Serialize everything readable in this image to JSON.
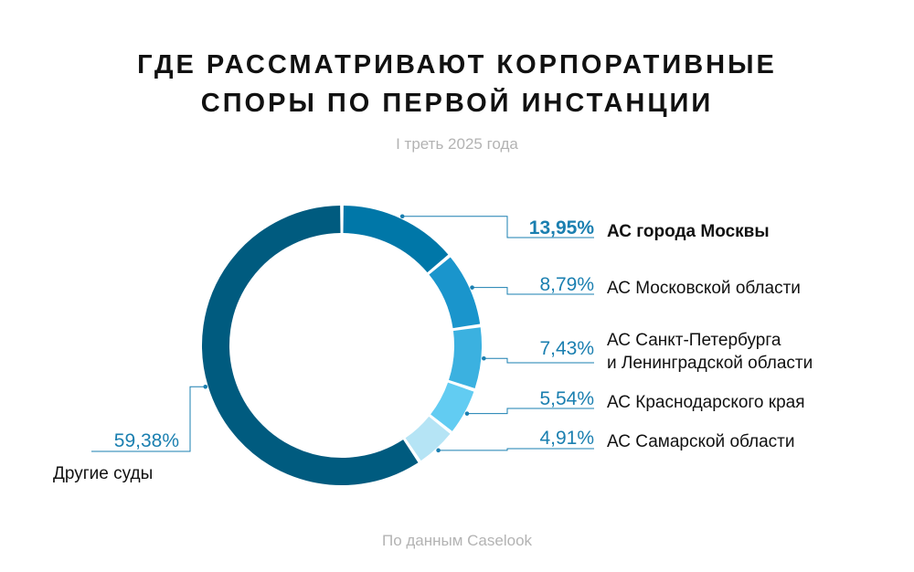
{
  "header": {
    "title_line1": "ГДЕ РАССМАТРИВАЮТ КОРПОРАТИВНЫЕ",
    "title_line2": "СПОРЫ ПО ПЕРВОЙ ИНСТАНЦИИ",
    "subtitle": "I треть 2025 года"
  },
  "footer": {
    "source": "По данным Caselook"
  },
  "chart_data": {
    "type": "pie",
    "variant": "donut",
    "title": "ГДЕ РАССМАТРИВАЮТ КОРПОРАТИВНЫЕ СПОРЫ ПО ПЕРВОЙ ИНСТАНЦИИ",
    "subtitle": "I треть 2025 года",
    "slices": [
      {
        "label": "АС города Москвы",
        "label_lines": [
          "АС города Москвы"
        ],
        "value": 13.95,
        "value_label": "13,95%",
        "color": "#0077a8",
        "emphasis": true
      },
      {
        "label": "АС Московской области",
        "label_lines": [
          "АС Московской области"
        ],
        "value": 8.79,
        "value_label": "8,79%",
        "color": "#1a95cc"
      },
      {
        "label": "АС Санкт-Петербурга и Ленинградской области",
        "label_lines": [
          "АС Санкт-Петербурга",
          "и Ленинградской области"
        ],
        "value": 7.43,
        "value_label": "7,43%",
        "color": "#3bb1e0"
      },
      {
        "label": "АС Краснодарского края",
        "label_lines": [
          "АС Краснодарского края"
        ],
        "value": 5.54,
        "value_label": "5,54%",
        "color": "#62ccf2"
      },
      {
        "label": "АС Самарской области",
        "label_lines": [
          "АС Самарской области"
        ],
        "value": 4.91,
        "value_label": "4,91%",
        "color": "#b5e4f5"
      },
      {
        "label": "Другие суды",
        "label_lines": [
          "Другие суды"
        ],
        "value": 59.38,
        "value_label": "59,38%",
        "color": "#005b7f"
      }
    ],
    "line_color": "#1a7fb0"
  }
}
